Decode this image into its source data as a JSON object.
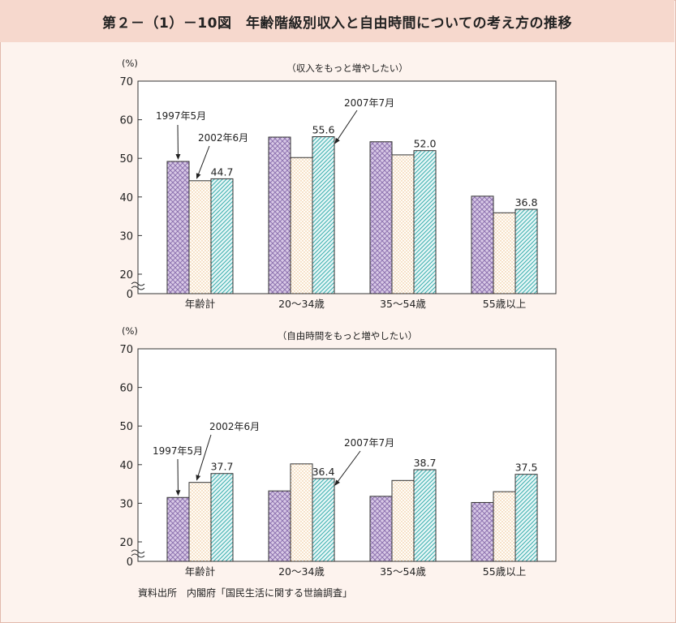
{
  "figure_title": "第２－（1）－10図　年齢階級別収入と自由時間についての考え方の推移",
  "source": "資料出所　内閣府「国民生活に関する世論調査」",
  "colors": {
    "s1997": "#9c82b9",
    "s2002": "#f0c89c",
    "s2007": "#5cc3c2"
  },
  "chart_data": [
    {
      "type": "bar",
      "title": "（収入をもっと増やしたい）",
      "ylabel": "(%)",
      "ylim": [
        0,
        70
      ],
      "yticks": [
        "0",
        "20",
        "30",
        "40",
        "50",
        "60",
        "70"
      ],
      "categories": [
        "年齢計",
        "20～34歳",
        "35～54歳",
        "55歳以上"
      ],
      "series": [
        {
          "name": "1997年5月",
          "values": [
            49.2,
            55.5,
            54.3,
            40.2
          ]
        },
        {
          "name": "2002年6月",
          "values": [
            44.2,
            50.2,
            50.9,
            35.9
          ]
        },
        {
          "name": "2007年7月",
          "values": [
            44.7,
            55.6,
            52.0,
            36.8
          ]
        }
      ],
      "value_labels": [
        "44.7",
        "55.6",
        "52.0",
        "36.8"
      ],
      "legend_labels": [
        "1997年5月",
        "2002年6月",
        "2007年7月"
      ]
    },
    {
      "type": "bar",
      "title": "（自由時間をもっと増やしたい）",
      "ylabel": "(%)",
      "ylim": [
        0,
        70
      ],
      "yticks": [
        "0",
        "20",
        "30",
        "40",
        "50",
        "60",
        "70"
      ],
      "categories": [
        "年齢計",
        "20～34歳",
        "35～54歳",
        "55歳以上"
      ],
      "series": [
        {
          "name": "1997年5月",
          "values": [
            31.5,
            33.2,
            31.8,
            30.2
          ]
        },
        {
          "name": "2002年6月",
          "values": [
            35.4,
            40.2,
            35.9,
            33.0
          ]
        },
        {
          "name": "2007年7月",
          "values": [
            37.7,
            36.4,
            38.7,
            37.5
          ]
        }
      ],
      "value_labels": [
        "37.7",
        "36.4",
        "38.7",
        "37.5"
      ],
      "legend_labels": [
        "1997年5月",
        "2002年6月",
        "2007年7月"
      ]
    }
  ]
}
